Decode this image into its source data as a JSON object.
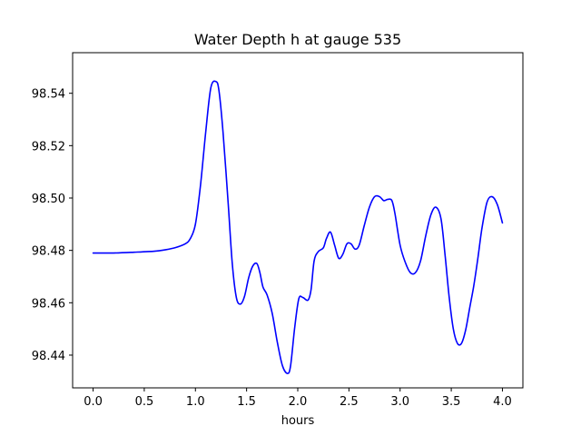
{
  "chart_data": {
    "type": "line",
    "title": "Water Depth h at gauge 535",
    "xlabel": "hours",
    "ylabel": "",
    "xlim": [
      -0.2,
      4.2
    ],
    "ylim": [
      98.4275,
      98.5555
    ],
    "xticks": [
      0.0,
      0.5,
      1.0,
      1.5,
      2.0,
      2.5,
      3.0,
      3.5,
      4.0
    ],
    "xtick_labels": [
      "0.0",
      "0.5",
      "1.0",
      "1.5",
      "2.0",
      "2.5",
      "3.0",
      "3.5",
      "4.0"
    ],
    "yticks": [
      98.44,
      98.46,
      98.48,
      98.5,
      98.52,
      98.54
    ],
    "ytick_labels": [
      "98.44",
      "98.46",
      "98.48",
      "98.50",
      "98.52",
      "98.54"
    ],
    "grid": false,
    "series": [
      {
        "color": "#0000ff",
        "x": [
          0.0,
          0.2,
          0.4,
          0.6,
          0.7,
          0.8,
          0.9,
          0.95,
          1.0,
          1.05,
          1.1,
          1.15,
          1.2,
          1.23,
          1.27,
          1.32,
          1.36,
          1.4,
          1.44,
          1.48,
          1.52,
          1.56,
          1.6,
          1.63,
          1.66,
          1.7,
          1.75,
          1.8,
          1.85,
          1.9,
          1.93,
          1.97,
          2.01,
          2.05,
          2.1,
          2.13,
          2.16,
          2.2,
          2.25,
          2.28,
          2.32,
          2.36,
          2.4,
          2.44,
          2.48,
          2.52,
          2.56,
          2.6,
          2.65,
          2.7,
          2.75,
          2.8,
          2.84,
          2.88,
          2.92,
          2.95,
          3.0,
          3.05,
          3.1,
          3.15,
          3.2,
          3.25,
          3.3,
          3.35,
          3.4,
          3.44,
          3.48,
          3.52,
          3.56,
          3.6,
          3.64,
          3.68,
          3.72,
          3.76,
          3.8,
          3.85,
          3.9,
          3.95,
          4.0
        ],
        "y": [
          98.479,
          98.479,
          98.4793,
          98.4797,
          98.4802,
          98.481,
          98.4825,
          98.4845,
          98.49,
          98.505,
          98.525,
          98.542,
          98.5445,
          98.541,
          98.525,
          98.498,
          98.475,
          98.462,
          98.4595,
          98.4625,
          98.4695,
          98.474,
          98.475,
          98.4715,
          98.466,
          98.463,
          98.456,
          98.445,
          98.436,
          98.433,
          98.436,
          98.4505,
          98.4615,
          98.462,
          98.461,
          98.465,
          98.476,
          98.4795,
          98.481,
          98.4845,
          98.487,
          98.482,
          98.477,
          98.4785,
          98.4825,
          98.4825,
          98.4805,
          98.482,
          98.4895,
          98.4965,
          98.5005,
          98.5005,
          98.499,
          98.4995,
          98.499,
          98.494,
          98.482,
          98.4755,
          98.4715,
          98.4715,
          98.476,
          98.4855,
          98.4935,
          98.4965,
          98.492,
          98.478,
          98.462,
          98.45,
          98.4445,
          98.4445,
          98.4495,
          98.458,
          98.4665,
          98.477,
          98.4885,
          98.4985,
          98.5005,
          98.4975,
          98.4905
        ]
      }
    ]
  }
}
